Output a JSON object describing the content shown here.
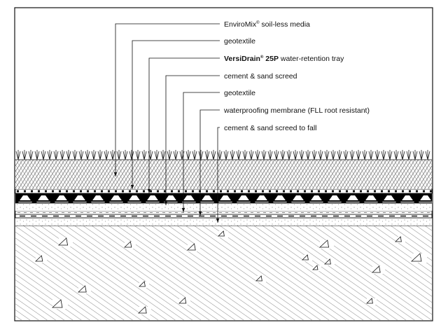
{
  "labels": [
    {
      "id": "enviromix",
      "brand": "EnviroMix",
      "reg": "®",
      "rest": " soil-less media",
      "bold": false
    },
    {
      "id": "geotextile-1",
      "brand": "",
      "reg": "",
      "rest": "geotextile",
      "bold": false
    },
    {
      "id": "versidrain",
      "brand": "VersiDrain",
      "reg": "®",
      "rest": " 25P",
      "tail": " water-retention tray",
      "bold": true
    },
    {
      "id": "screed-1",
      "brand": "",
      "reg": "",
      "rest": "cement & sand screed",
      "bold": false
    },
    {
      "id": "geotextile-2",
      "brand": "",
      "reg": "",
      "rest": "geotextile",
      "bold": false
    },
    {
      "id": "membrane",
      "brand": "",
      "reg": "",
      "rest": "waterproofing membrane (FLL root resistant)",
      "bold": false
    },
    {
      "id": "screed-fall",
      "brand": "",
      "reg": "",
      "rest": "cement & sand screed to fall",
      "bold": false
    }
  ],
  "colors": {
    "line": "#111111",
    "hatch": "#444444",
    "soil_fill": "#f2f2f2",
    "tray_fill": "#000000",
    "background": "#ffffff"
  },
  "layers": [
    "grass-layer",
    "soil-less-media-layer",
    "geotextile-layer-1",
    "drainage-tray-layer",
    "cement-sand-screed-layer",
    "geotextile-layer-2",
    "waterproofing-membrane-layer",
    "screed-to-fall-layer",
    "concrete-slab-layer"
  ]
}
